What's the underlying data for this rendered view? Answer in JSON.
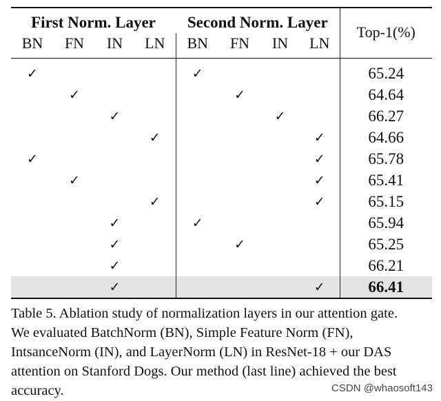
{
  "table": {
    "group_headers": {
      "first": "First Norm. Layer",
      "second": "Second Norm. Layer"
    },
    "metric_header": "Top-1(%)",
    "sub_headers": [
      "BN",
      "FN",
      "IN",
      "LN",
      "BN",
      "FN",
      "IN",
      "LN"
    ],
    "check_symbol": "✓",
    "rows": [
      {
        "first": "BN",
        "second": "BN",
        "top1": "65.24"
      },
      {
        "first": "FN",
        "second": "FN",
        "top1": "64.64"
      },
      {
        "first": "IN",
        "second": "IN",
        "top1": "66.27"
      },
      {
        "first": "LN",
        "second": "LN",
        "top1": "64.66"
      },
      {
        "first": "BN",
        "second": "LN",
        "top1": "65.78"
      },
      {
        "first": "FN",
        "second": "LN",
        "top1": "65.41"
      },
      {
        "first": "LN",
        "second": "LN",
        "top1": "65.15"
      },
      {
        "first": "IN",
        "second": "BN",
        "top1": "65.94"
      },
      {
        "first": "IN",
        "second": "FN",
        "top1": "65.25"
      },
      {
        "first": "IN",
        "second": "",
        "top1": "66.21"
      },
      {
        "first": "IN",
        "second": "LN",
        "top1": "66.41",
        "highlight": true
      }
    ],
    "highlight_color": "#e3e3e3"
  },
  "caption": "Table 5.  Ablation study of normalization layers in our attention gate. We evaluated BatchNorm (BN), Simple Feature Norm (FN), IntsanceNorm (IN), and LayerNorm (LN) in ResNet-18 + our DAS attention on Stanford Dogs. Our method (last line) achieved the best accuracy.",
  "watermark": "CSDN @whaosoft143"
}
